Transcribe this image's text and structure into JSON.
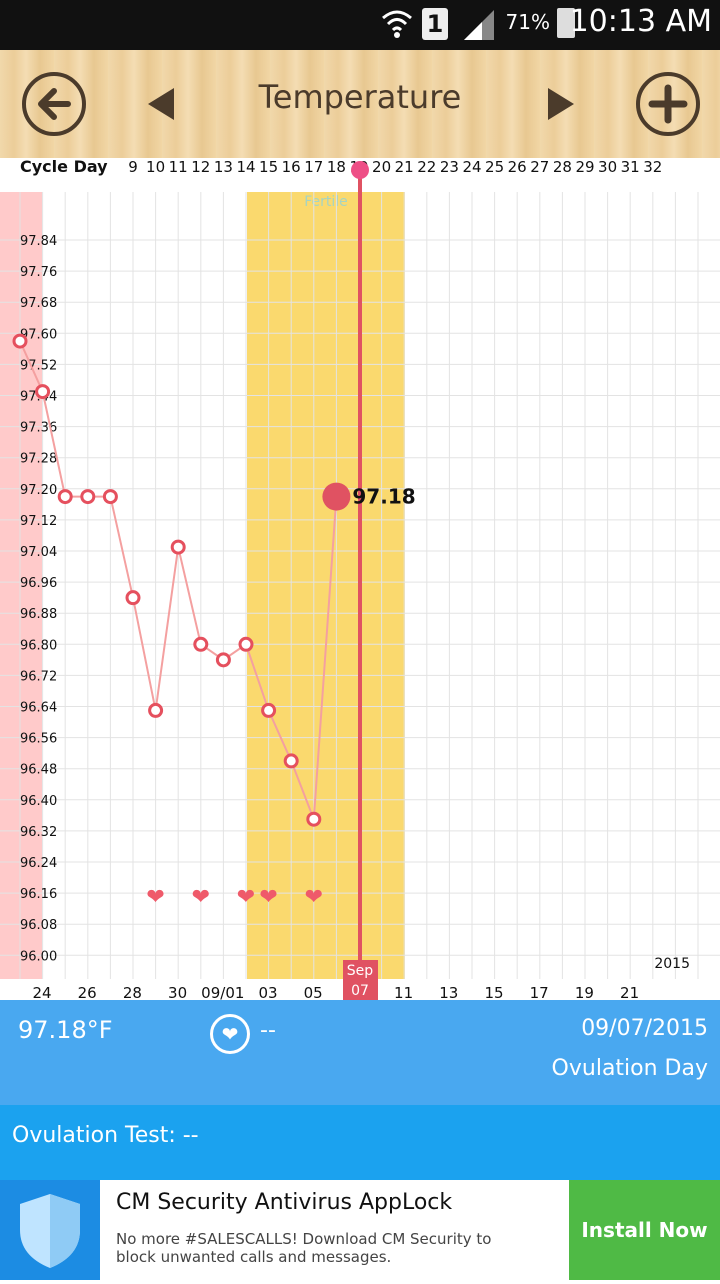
{
  "status_bar": {
    "time": "10:13 AM",
    "battery_percent": "71%",
    "sim_slot": "1",
    "icons": [
      "wifi-icon",
      "signal-icon",
      "battery-icon"
    ]
  },
  "header": {
    "title": "Temperature",
    "back_icon": "arrow-left-icon",
    "prev_icon": "triangle-left-icon",
    "next_icon": "triangle-right-icon",
    "add_icon": "plus-icon"
  },
  "chart_data": {
    "type": "line",
    "cycle_day_label": "Cycle Day",
    "cycle_days": [
      "9",
      "10",
      "11",
      "12",
      "13",
      "14",
      "15",
      "16",
      "17",
      "18",
      "19",
      "20",
      "21",
      "22",
      "23",
      "24",
      "25",
      "26",
      "27",
      "28",
      "29",
      "30",
      "31",
      "32"
    ],
    "fertile_label": "Fertile",
    "y_ticks": [
      "97.84",
      "97.76",
      "97.68",
      "97.60",
      "97.52",
      "97.44",
      "97.36",
      "97.28",
      "97.20",
      "97.12",
      "97.04",
      "96.96",
      "96.88",
      "96.80",
      "96.72",
      "96.64",
      "96.56",
      "96.48",
      "96.40",
      "96.32",
      "96.24",
      "96.16",
      "96.08",
      "96.00"
    ],
    "ylim": [
      96.0,
      97.9
    ],
    "x_labels": [
      "24",
      "26",
      "28",
      "30",
      "09/01",
      "03",
      "05",
      "09",
      "11",
      "13",
      "15",
      "17",
      "19",
      "21"
    ],
    "series": [
      {
        "x": [
          "08/24",
          "08/25",
          "08/26",
          "08/27",
          "08/28",
          "08/29",
          "08/30",
          "08/31",
          "09/01",
          "09/02",
          "09/03",
          "09/04",
          "09/05",
          "09/06",
          "09/07"
        ],
        "values": [
          97.58,
          97.45,
          97.18,
          97.18,
          97.18,
          96.92,
          96.63,
          97.05,
          96.8,
          96.76,
          96.8,
          96.63,
          96.5,
          96.35,
          97.18
        ]
      }
    ],
    "intercourse_dates": [
      "08/30",
      "09/01",
      "09/03",
      "09/04",
      "09/06"
    ],
    "selected_value_label": "97.18",
    "selected_month": "Sep",
    "selected_day": "07",
    "year_label": "2015",
    "colors": {
      "line": "#f4a0a0",
      "marker": "#e5505e",
      "fertile": "#fad96e",
      "period": "#ffcaca",
      "cursor": "#e05262"
    },
    "grid": true
  },
  "info": {
    "temperature": "97.18°F",
    "intercourse": "--",
    "date": "09/07/2015",
    "day_type": "Ovulation Day",
    "heart_icon": "heart-icon"
  },
  "ovulation_test": {
    "label": "Ovulation Test: --"
  },
  "ad": {
    "title": "CM Security Antivirus AppLock",
    "description": "No more #SALESCALLS! Download CM Security to block unwanted calls and messages.",
    "button": "Install Now",
    "shield_icon": "shield-icon"
  }
}
